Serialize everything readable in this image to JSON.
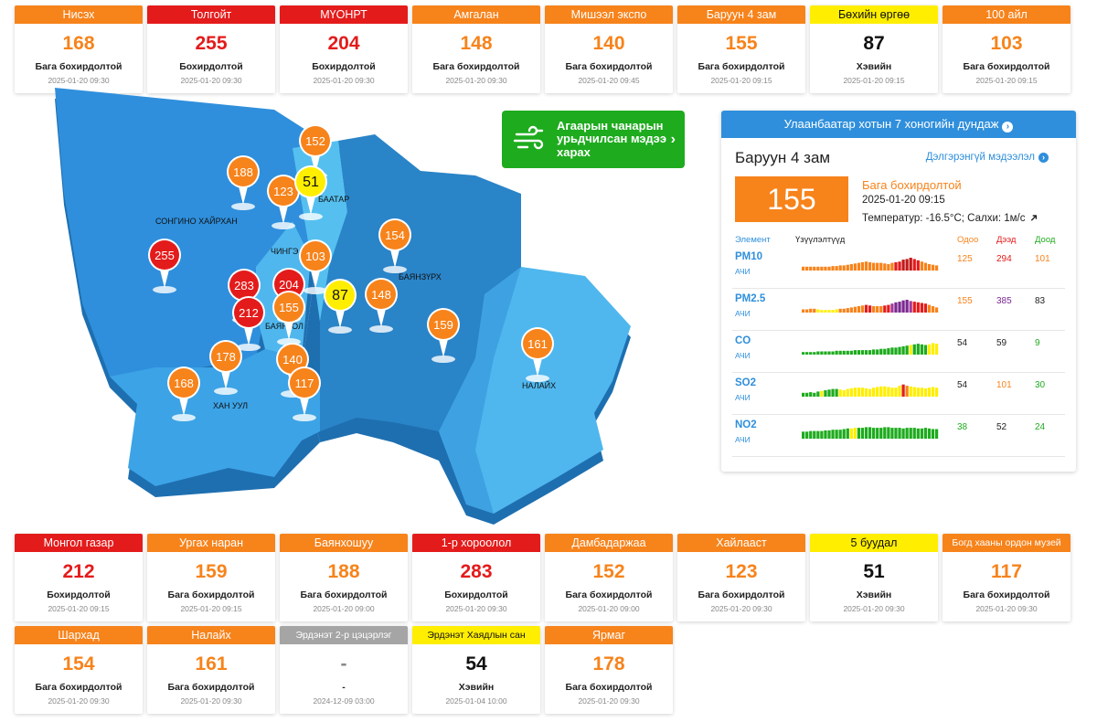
{
  "levels": {
    "high": "#e41b1b",
    "medium": "#f7831b",
    "low": "#ffee00",
    "none": "#a5a5a5"
  },
  "top_stations": [
    {
      "name": "Нисэх",
      "value": "168",
      "level": "Бага бохирдолтой",
      "time": "2025-01-20 09:30",
      "status": "medium"
    },
    {
      "name": "Толгойт",
      "value": "255",
      "level": "Бохирдолтой",
      "time": "2025-01-20 09:30",
      "status": "high"
    },
    {
      "name": "МҮОНРТ",
      "value": "204",
      "level": "Бохирдолтой",
      "time": "2025-01-20 09:30",
      "status": "high"
    },
    {
      "name": "Амгалан",
      "value": "148",
      "level": "Бага бохирдолтой",
      "time": "2025-01-20 09:30",
      "status": "medium"
    },
    {
      "name": "Мишээл экспо",
      "value": "140",
      "level": "Бага бохирдолтой",
      "time": "2025-01-20 09:45",
      "status": "medium"
    },
    {
      "name": "Баруун 4 зам",
      "value": "155",
      "level": "Бага бохирдолтой",
      "time": "2025-01-20 09:15",
      "status": "medium"
    },
    {
      "name": "Бөхийн өргөө",
      "value": "87",
      "level": "Хэвийн",
      "time": "2025-01-20 09:15",
      "status": "low"
    },
    {
      "name": "100 айл",
      "value": "103",
      "level": "Бага бохирдолтой",
      "time": "2025-01-20 09:15",
      "status": "medium"
    }
  ],
  "bottom_stations": [
    {
      "name": "Монгол газар",
      "value": "212",
      "level": "Бохирдолтой",
      "time": "2025-01-20 09:15",
      "status": "high"
    },
    {
      "name": "Ургах наран",
      "value": "159",
      "level": "Бага бохирдолтой",
      "time": "2025-01-20 09:15",
      "status": "medium"
    },
    {
      "name": "Баянхошуу",
      "value": "188",
      "level": "Бага бохирдолтой",
      "time": "2025-01-20 09:00",
      "status": "medium"
    },
    {
      "name": "1-р хороолол",
      "value": "283",
      "level": "Бохирдолтой",
      "time": "2025-01-20 09:30",
      "status": "high"
    },
    {
      "name": "Дамбадаржаа",
      "value": "152",
      "level": "Бага бохирдолтой",
      "time": "2025-01-20 09:00",
      "status": "medium"
    },
    {
      "name": "Хайлааст",
      "value": "123",
      "level": "Бага бохирдолтой",
      "time": "2025-01-20 09:30",
      "status": "medium"
    },
    {
      "name": "5 буудал",
      "value": "51",
      "level": "Хэвийн",
      "time": "2025-01-20 09:30",
      "status": "low"
    },
    {
      "name": "Богд хааны ордон музей",
      "value": "117",
      "level": "Бага бохирдолтой",
      "time": "2025-01-20 09:30",
      "status": "medium"
    },
    {
      "name": "Шархад",
      "value": "154",
      "level": "Бага бохирдолтой",
      "time": "2025-01-20 09:30",
      "status": "medium"
    },
    {
      "name": "Налайх",
      "value": "161",
      "level": "Бага бохирдолтой",
      "time": "2025-01-20 09:30",
      "status": "medium"
    },
    {
      "name": "Эрдэнэт 2-р цэцэрлэг",
      "value": "-",
      "level": "-",
      "time": "2024-12-09 03:00",
      "status": "none"
    },
    {
      "name": "Эрдэнэт Хаядлын сан",
      "value": "54",
      "level": "Хэвийн",
      "time": "2025-01-04 10:00",
      "status": "low"
    },
    {
      "name": "Ярмаг",
      "value": "178",
      "level": "Бага бохирдолтой",
      "time": "2025-01-20 09:30",
      "status": "medium"
    }
  ],
  "map": {
    "districts": [
      "СОНГИНО ХАЙРХАН",
      "БАЯНГОЛ",
      "ЧИНГЭЛТЭЙ",
      "СҮХБААТАР",
      "БАЯНЗҮРХ",
      "ХАН УУЛ",
      "НАЛАЙХ"
    ],
    "visible_labels": {
      "songino": "СОНГИНО ХАЙРХАН",
      "bayangol": "БАЯНГОЛ",
      "chingeltei": "ЧИНГЭ",
      "sukhbaatar": "БААТАР",
      "bayanzurkh": "БАЯНЗҮРХ",
      "khanuul": "ХАН УУЛ",
      "nalaikh": "НАЛАЙХ"
    },
    "pins": [
      {
        "value": "152",
        "status": "medium"
      },
      {
        "value": "188",
        "status": "medium"
      },
      {
        "value": "123",
        "status": "medium"
      },
      {
        "value": "51",
        "status": "low"
      },
      {
        "value": "154",
        "status": "medium"
      },
      {
        "value": "255",
        "status": "high"
      },
      {
        "value": "103",
        "status": "medium"
      },
      {
        "value": "283",
        "status": "high"
      },
      {
        "value": "204",
        "status": "high"
      },
      {
        "value": "212",
        "status": "high"
      },
      {
        "value": "155",
        "status": "medium"
      },
      {
        "value": "87",
        "status": "low"
      },
      {
        "value": "148",
        "status": "medium"
      },
      {
        "value": "159",
        "status": "medium"
      },
      {
        "value": "161",
        "status": "medium"
      },
      {
        "value": "178",
        "status": "medium"
      },
      {
        "value": "140",
        "status": "medium"
      },
      {
        "value": "168",
        "status": "medium"
      },
      {
        "value": "117",
        "status": "medium"
      }
    ]
  },
  "forecast_button": {
    "label": "Агаарын чанарын урьдчилсан мэдээ харах",
    "icon": "wind-icon"
  },
  "panel": {
    "header": "Улаанбаатар хотын 7 хоногийн дундаж",
    "station": "Баруун 4 зам",
    "more_link": "Дэлгэрэнгүй мэдээлэл",
    "value": "155",
    "level": "Бага бохирдолтой",
    "timestamp": "2025-01-20 09:15",
    "weather": "Температур: -16.5°C; Салхи: 1м/с",
    "columns": {
      "element": "Элемент",
      "indicators": "Үзүүлэлтүүд",
      "current": "Одоо",
      "max": "Дээд",
      "min": "Доод"
    },
    "pollutants": [
      {
        "name": "PM10",
        "unit": "АЧИ",
        "current": "125",
        "max": "294",
        "min": "101",
        "current_color": "#f7831b",
        "max_color": "#e41b1b",
        "min_color": "#f7831b",
        "bars": [
          0.3,
          0.3,
          0.3,
          0.3,
          0.3,
          0.3,
          0.3,
          0.3,
          0.35,
          0.35,
          0.4,
          0.4,
          0.45,
          0.5,
          0.55,
          0.6,
          0.65,
          0.7,
          0.65,
          0.6,
          0.6,
          0.6,
          0.55,
          0.5,
          0.6,
          0.65,
          0.7,
          0.85,
          0.9,
          1.0,
          0.9,
          0.8,
          0.7,
          0.6,
          0.5,
          0.45,
          0.4
        ],
        "bar_colors": [
          "#f7831b",
          "#f7831b",
          "#f7831b",
          "#f7831b",
          "#f7831b",
          "#f7831b",
          "#f7831b",
          "#f7831b",
          "#f7831b",
          "#f7831b",
          "#f7831b",
          "#f7831b",
          "#f7831b",
          "#f7831b",
          "#f7831b",
          "#f7831b",
          "#f7831b",
          "#f7831b",
          "#f7831b",
          "#f7831b",
          "#f7831b",
          "#f7831b",
          "#f7831b",
          "#f7831b",
          "#f7831b",
          "#e41b1b",
          "#e41b1b",
          "#c01a1a",
          "#c01a1a",
          "#c01a1a",
          "#e41b1b",
          "#e41b1b",
          "#f7831b",
          "#f7831b",
          "#f7831b",
          "#f7831b",
          "#f7831b"
        ]
      },
      {
        "name": "PM2.5",
        "unit": "АЧИ",
        "current": "155",
        "max": "385",
        "min": "83",
        "current_color": "#f7831b",
        "max_color": "#7a2a90",
        "min_color": "#222222",
        "bars": [
          0.25,
          0.25,
          0.3,
          0.3,
          0.25,
          0.2,
          0.2,
          0.2,
          0.2,
          0.25,
          0.3,
          0.3,
          0.35,
          0.4,
          0.45,
          0.5,
          0.55,
          0.6,
          0.55,
          0.5,
          0.5,
          0.5,
          0.55,
          0.6,
          0.7,
          0.8,
          0.85,
          0.95,
          1.0,
          0.9,
          0.85,
          0.8,
          0.75,
          0.7,
          0.6,
          0.5,
          0.4
        ],
        "bar_colors": [
          "#f7831b",
          "#f7831b",
          "#f7831b",
          "#f7831b",
          "#ffee00",
          "#ffee00",
          "#ffee00",
          "#ffee00",
          "#ffee00",
          "#ffee00",
          "#f7831b",
          "#f7831b",
          "#f7831b",
          "#f7831b",
          "#f7831b",
          "#f7831b",
          "#f7831b",
          "#e41b1b",
          "#e41b1b",
          "#f7831b",
          "#f7831b",
          "#f7831b",
          "#e41b1b",
          "#e41b1b",
          "#a23a9a",
          "#7a2a90",
          "#7a2a90",
          "#7a2a90",
          "#7a2a90",
          "#a23a9a",
          "#e41b1b",
          "#e41b1b",
          "#e41b1b",
          "#e41b1b",
          "#f7831b",
          "#f7831b",
          "#f7831b"
        ]
      },
      {
        "name": "CO",
        "unit": "АЧИ",
        "current": "54",
        "max": "59",
        "min": "9",
        "current_color": "#222222",
        "max_color": "#222222",
        "min_color": "#1eab1e",
        "bars": [
          0.2,
          0.2,
          0.2,
          0.2,
          0.25,
          0.25,
          0.25,
          0.25,
          0.25,
          0.3,
          0.3,
          0.3,
          0.3,
          0.3,
          0.35,
          0.35,
          0.35,
          0.35,
          0.35,
          0.4,
          0.4,
          0.45,
          0.45,
          0.5,
          0.55,
          0.55,
          0.6,
          0.65,
          0.7,
          0.75,
          0.8,
          0.85,
          0.8,
          0.75,
          0.8,
          0.9,
          0.85
        ],
        "bar_colors": [
          "#1eab1e",
          "#1eab1e",
          "#1eab1e",
          "#1eab1e",
          "#1eab1e",
          "#1eab1e",
          "#1eab1e",
          "#1eab1e",
          "#1eab1e",
          "#1eab1e",
          "#1eab1e",
          "#1eab1e",
          "#1eab1e",
          "#1eab1e",
          "#1eab1e",
          "#1eab1e",
          "#1eab1e",
          "#1eab1e",
          "#1eab1e",
          "#1eab1e",
          "#1eab1e",
          "#1eab1e",
          "#1eab1e",
          "#1eab1e",
          "#1eab1e",
          "#1eab1e",
          "#1eab1e",
          "#1eab1e",
          "#1eab1e",
          "#ffee00",
          "#1eab1e",
          "#1eab1e",
          "#1eab1e",
          "#1eab1e",
          "#ffee00",
          "#ffee00",
          "#ffee00"
        ]
      },
      {
        "name": "SO2",
        "unit": "АЧИ",
        "current": "54",
        "max": "101",
        "min": "30",
        "current_color": "#222222",
        "max_color": "#f7831b",
        "min_color": "#1eab1e",
        "bars": [
          0.3,
          0.3,
          0.35,
          0.3,
          0.4,
          0.45,
          0.5,
          0.55,
          0.6,
          0.6,
          0.55,
          0.5,
          0.6,
          0.65,
          0.7,
          0.7,
          0.7,
          0.65,
          0.6,
          0.7,
          0.75,
          0.8,
          0.8,
          0.75,
          0.7,
          0.7,
          0.85,
          0.95,
          0.85,
          0.8,
          0.75,
          0.7,
          0.7,
          0.65,
          0.7,
          0.75,
          0.7
        ],
        "bar_colors": [
          "#1eab1e",
          "#1eab1e",
          "#1eab1e",
          "#1eab1e",
          "#1eab1e",
          "#ffee00",
          "#1eab1e",
          "#1eab1e",
          "#1eab1e",
          "#1eab1e",
          "#ffee00",
          "#ffee00",
          "#ffee00",
          "#ffee00",
          "#ffee00",
          "#ffee00",
          "#ffee00",
          "#ffee00",
          "#ffee00",
          "#ffee00",
          "#ffee00",
          "#ffee00",
          "#ffee00",
          "#ffee00",
          "#ffee00",
          "#ffee00",
          "#ffee00",
          "#e41b1b",
          "#f7831b",
          "#ffee00",
          "#ffee00",
          "#ffee00",
          "#ffee00",
          "#ffee00",
          "#ffee00",
          "#ffee00",
          "#ffee00"
        ]
      },
      {
        "name": "NO2",
        "unit": "АЧИ",
        "current": "38",
        "max": "52",
        "min": "24",
        "current_color": "#1eab1e",
        "max_color": "#222222",
        "min_color": "#1eab1e",
        "bars": [
          0.55,
          0.55,
          0.6,
          0.6,
          0.6,
          0.6,
          0.65,
          0.65,
          0.7,
          0.7,
          0.7,
          0.75,
          0.8,
          0.8,
          0.85,
          0.85,
          0.85,
          0.9,
          0.9,
          0.85,
          0.85,
          0.85,
          0.9,
          0.9,
          0.85,
          0.85,
          0.85,
          0.8,
          0.85,
          0.85,
          0.85,
          0.8,
          0.8,
          0.85,
          0.8,
          0.75,
          0.75
        ],
        "bar_colors": [
          "#1eab1e",
          "#1eab1e",
          "#1eab1e",
          "#1eab1e",
          "#1eab1e",
          "#1eab1e",
          "#1eab1e",
          "#1eab1e",
          "#1eab1e",
          "#1eab1e",
          "#1eab1e",
          "#1eab1e",
          "#1eab1e",
          "#ffee00",
          "#ffee00",
          "#1eab1e",
          "#1eab1e",
          "#1eab1e",
          "#1eab1e",
          "#1eab1e",
          "#1eab1e",
          "#1eab1e",
          "#1eab1e",
          "#1eab1e",
          "#1eab1e",
          "#1eab1e",
          "#1eab1e",
          "#1eab1e",
          "#1eab1e",
          "#1eab1e",
          "#1eab1e",
          "#1eab1e",
          "#1eab1e",
          "#1eab1e",
          "#1eab1e",
          "#1eab1e",
          "#1eab1e"
        ]
      }
    ]
  }
}
